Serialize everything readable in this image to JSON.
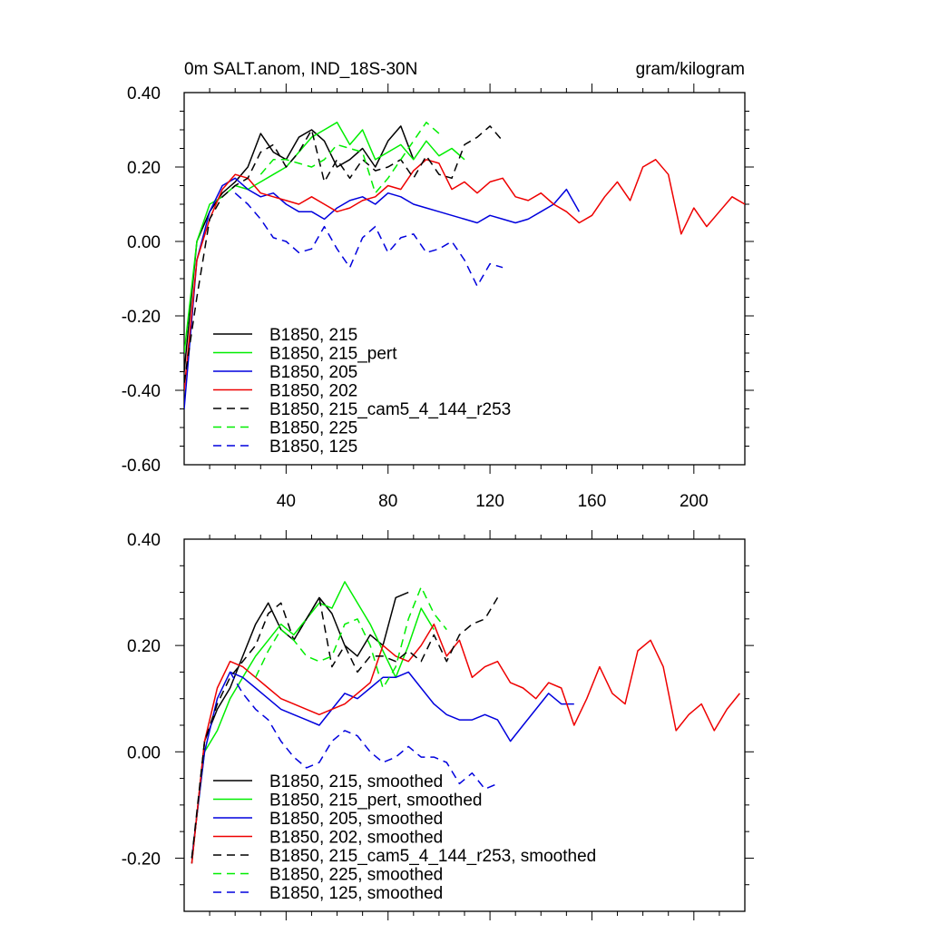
{
  "chart_data": [
    {
      "type": "line",
      "title": "0m SALT.anom, IND_18S-30N",
      "units": "gram/kilogram",
      "xlabel": "",
      "ylabel": "",
      "xlim": [
        0,
        220
      ],
      "ylim": [
        -0.6,
        0.4
      ],
      "xticks": [
        40,
        80,
        120,
        160,
        200
      ],
      "xtick_labels": [
        "40",
        "80",
        "120",
        "160",
        "200"
      ],
      "yticks": [
        -0.6,
        -0.4,
        -0.2,
        0.0,
        0.2,
        0.4
      ],
      "ytick_labels": [
        "-0.60",
        "-0.40",
        "-0.20",
        "0.00",
        "0.20",
        "0.40"
      ],
      "legend_position": "bottom-left",
      "series": [
        {
          "name": "B1850, 215",
          "color": "#000000",
          "dash": "solid",
          "x": [
            0,
            5,
            10,
            15,
            20,
            25,
            30,
            35,
            40,
            45,
            50,
            55,
            60,
            65,
            70,
            75,
            80,
            85,
            90
          ],
          "y": [
            -0.35,
            0.0,
            0.08,
            0.13,
            0.16,
            0.2,
            0.29,
            0.24,
            0.22,
            0.28,
            0.3,
            0.27,
            0.2,
            0.22,
            0.25,
            0.2,
            0.27,
            0.31,
            0.22
          ]
        },
        {
          "name": "B1850, 215_pert",
          "color": "#00ee00",
          "dash": "solid",
          "x": [
            0,
            5,
            10,
            15,
            20,
            25,
            30,
            35,
            40,
            45,
            50,
            55,
            60,
            65,
            70,
            75,
            80,
            85,
            90,
            95,
            100,
            105,
            110
          ],
          "y": [
            -0.3,
            0.0,
            0.1,
            0.12,
            0.15,
            0.14,
            0.16,
            0.18,
            0.2,
            0.24,
            0.28,
            0.3,
            0.32,
            0.26,
            0.3,
            0.22,
            0.24,
            0.26,
            0.22,
            0.27,
            0.23,
            0.25,
            0.22
          ]
        },
        {
          "name": "B1850, 205",
          "color": "#0000dd",
          "dash": "solid",
          "x": [
            0,
            5,
            10,
            15,
            20,
            25,
            30,
            35,
            40,
            45,
            50,
            55,
            60,
            65,
            70,
            75,
            80,
            85,
            90,
            95,
            100,
            105,
            110,
            115,
            120,
            125,
            130,
            135,
            140,
            145,
            150,
            155
          ],
          "y": [
            -0.45,
            -0.05,
            0.08,
            0.15,
            0.17,
            0.14,
            0.12,
            0.13,
            0.1,
            0.08,
            0.08,
            0.06,
            0.09,
            0.11,
            0.12,
            0.1,
            0.13,
            0.12,
            0.1,
            0.09,
            0.08,
            0.07,
            0.06,
            0.05,
            0.07,
            0.06,
            0.05,
            0.06,
            0.08,
            0.1,
            0.14,
            0.08
          ]
        },
        {
          "name": "B1850, 202",
          "color": "#ee0000",
          "dash": "solid",
          "x": [
            0,
            5,
            10,
            15,
            20,
            25,
            30,
            35,
            40,
            45,
            50,
            55,
            60,
            65,
            70,
            75,
            80,
            85,
            90,
            95,
            100,
            105,
            110,
            115,
            120,
            125,
            130,
            135,
            140,
            145,
            150,
            155,
            160,
            165,
            170,
            175,
            180,
            185,
            190,
            195,
            200,
            205,
            210,
            215,
            220
          ],
          "y": [
            -0.4,
            -0.05,
            0.06,
            0.14,
            0.18,
            0.17,
            0.13,
            0.12,
            0.11,
            0.1,
            0.12,
            0.1,
            0.08,
            0.09,
            0.11,
            0.12,
            0.15,
            0.14,
            0.19,
            0.22,
            0.21,
            0.14,
            0.16,
            0.13,
            0.16,
            0.17,
            0.12,
            0.11,
            0.13,
            0.1,
            0.08,
            0.05,
            0.07,
            0.12,
            0.16,
            0.11,
            0.2,
            0.22,
            0.18,
            0.02,
            0.09,
            0.04,
            0.08,
            0.12,
            0.1
          ]
        },
        {
          "name": "B1850, 215_cam5_4_144_r253",
          "color": "#000000",
          "dash": "dashed",
          "x": [
            0,
            5,
            10,
            15,
            20,
            25,
            30,
            35,
            40,
            45,
            50,
            55,
            60,
            65,
            70,
            75,
            80,
            85,
            90,
            95,
            100,
            105,
            110,
            115,
            120,
            125
          ],
          "y": [
            -0.38,
            -0.15,
            0.06,
            0.12,
            0.15,
            0.17,
            0.24,
            0.26,
            0.2,
            0.24,
            0.3,
            0.16,
            0.22,
            0.17,
            0.22,
            0.19,
            0.2,
            0.22,
            0.17,
            0.23,
            0.18,
            0.17,
            0.26,
            0.28,
            0.31,
            0.27
          ]
        },
        {
          "name": "B1850, 225",
          "color": "#00ee00",
          "dash": "dashed",
          "x": [
            30,
            35,
            40,
            45,
            50,
            55,
            60,
            65,
            70,
            75,
            80,
            85,
            90,
            95,
            100
          ],
          "y": [
            0.18,
            0.22,
            0.22,
            0.21,
            0.2,
            0.22,
            0.26,
            0.25,
            0.24,
            0.13,
            0.17,
            0.22,
            0.27,
            0.32,
            0.29
          ]
        },
        {
          "name": "B1850, 125",
          "color": "#0000dd",
          "dash": "dashed",
          "x": [
            20,
            25,
            30,
            35,
            40,
            45,
            50,
            55,
            60,
            65,
            70,
            75,
            80,
            85,
            90,
            95,
            100,
            105,
            110,
            115,
            120,
            125
          ],
          "y": [
            0.13,
            0.1,
            0.06,
            0.01,
            0.0,
            -0.03,
            -0.02,
            0.04,
            -0.02,
            -0.07,
            0.01,
            0.04,
            -0.03,
            0.01,
            0.02,
            -0.03,
            -0.02,
            0.0,
            -0.05,
            -0.12,
            -0.06,
            -0.07
          ]
        }
      ]
    },
    {
      "type": "line",
      "title": "",
      "xlabel": "",
      "ylabel": "",
      "xlim": [
        0,
        220
      ],
      "ylim": [
        -0.3,
        0.4
      ],
      "yticks": [
        -0.2,
        0.0,
        0.2,
        0.4
      ],
      "ytick_labels": [
        "-0.20",
        "0.00",
        "0.20",
        "0.40"
      ],
      "legend_position": "bottom-left",
      "series": [
        {
          "name": "B1850, 215, smoothed",
          "color": "#000000",
          "dash": "solid",
          "x": [
            3,
            8,
            13,
            18,
            23,
            28,
            33,
            38,
            43,
            48,
            53,
            58,
            63,
            68,
            73,
            78,
            83,
            88
          ],
          "y": [
            -0.21,
            0.02,
            0.08,
            0.12,
            0.18,
            0.24,
            0.28,
            0.23,
            0.21,
            0.25,
            0.29,
            0.26,
            0.2,
            0.18,
            0.22,
            0.2,
            0.29,
            0.3
          ]
        },
        {
          "name": "B1850, 215_pert, smoothed",
          "color": "#00ee00",
          "dash": "solid",
          "x": [
            3,
            8,
            13,
            18,
            23,
            28,
            33,
            38,
            43,
            48,
            53,
            58,
            63,
            68,
            73,
            78,
            83,
            88,
            93,
            98
          ],
          "y": [
            -0.2,
            0.0,
            0.04,
            0.1,
            0.14,
            0.18,
            0.21,
            0.24,
            0.22,
            0.25,
            0.28,
            0.27,
            0.32,
            0.28,
            0.24,
            0.19,
            0.14,
            0.2,
            0.27,
            0.23
          ]
        },
        {
          "name": "B1850, 205, smoothed",
          "color": "#0000dd",
          "dash": "solid",
          "x": [
            3,
            8,
            13,
            18,
            23,
            28,
            33,
            38,
            43,
            48,
            53,
            58,
            63,
            68,
            73,
            78,
            83,
            88,
            93,
            98,
            103,
            108,
            113,
            118,
            123,
            128,
            133,
            138,
            143,
            148,
            153
          ],
          "y": [
            -0.2,
            0.0,
            0.1,
            0.15,
            0.14,
            0.12,
            0.1,
            0.08,
            0.07,
            0.06,
            0.05,
            0.08,
            0.11,
            0.1,
            0.12,
            0.14,
            0.14,
            0.15,
            0.12,
            0.09,
            0.07,
            0.06,
            0.06,
            0.07,
            0.06,
            0.02,
            0.05,
            0.08,
            0.11,
            0.09,
            0.09
          ]
        },
        {
          "name": "B1850, 202, smoothed",
          "color": "#ee0000",
          "dash": "solid",
          "x": [
            3,
            8,
            13,
            18,
            23,
            28,
            33,
            38,
            43,
            48,
            53,
            58,
            63,
            68,
            73,
            78,
            83,
            88,
            93,
            98,
            103,
            108,
            113,
            118,
            123,
            128,
            133,
            138,
            143,
            148,
            153,
            158,
            163,
            168,
            173,
            178,
            183,
            188,
            193,
            198,
            203,
            208,
            213,
            218
          ],
          "y": [
            -0.21,
            0.02,
            0.12,
            0.17,
            0.16,
            0.14,
            0.12,
            0.1,
            0.09,
            0.08,
            0.07,
            0.08,
            0.09,
            0.11,
            0.13,
            0.2,
            0.18,
            0.17,
            0.2,
            0.24,
            0.18,
            0.21,
            0.14,
            0.16,
            0.17,
            0.13,
            0.12,
            0.1,
            0.13,
            0.12,
            0.05,
            0.1,
            0.16,
            0.11,
            0.09,
            0.19,
            0.21,
            0.16,
            0.04,
            0.07,
            0.09,
            0.04,
            0.08,
            0.11
          ]
        },
        {
          "name": "B1850, 215_cam5_4_144_r253, smoothed",
          "color": "#000000",
          "dash": "dashed",
          "x": [
            3,
            8,
            13,
            18,
            23,
            28,
            33,
            38,
            43,
            48,
            53,
            58,
            63,
            68,
            73,
            78,
            83,
            88,
            93,
            98,
            103,
            108,
            113,
            118,
            123
          ],
          "y": [
            -0.2,
            0.02,
            0.09,
            0.14,
            0.17,
            0.2,
            0.26,
            0.28,
            0.21,
            0.25,
            0.29,
            0.16,
            0.2,
            0.15,
            0.18,
            0.18,
            0.17,
            0.19,
            0.17,
            0.22,
            0.17,
            0.22,
            0.24,
            0.25,
            0.29
          ]
        },
        {
          "name": "B1850, 225, smoothed",
          "color": "#00ee00",
          "dash": "dashed",
          "x": [
            28,
            33,
            38,
            43,
            48,
            53,
            58,
            63,
            68,
            73,
            78,
            83,
            88,
            93,
            98,
            103
          ],
          "y": [
            0.14,
            0.19,
            0.23,
            0.21,
            0.18,
            0.17,
            0.18,
            0.24,
            0.25,
            0.2,
            0.12,
            0.16,
            0.25,
            0.31,
            0.26,
            0.23
          ]
        },
        {
          "name": "B1850, 125, smoothed",
          "color": "#0000dd",
          "dash": "dashed",
          "x": [
            18,
            23,
            28,
            33,
            38,
            43,
            48,
            53,
            58,
            63,
            68,
            73,
            78,
            83,
            88,
            93,
            98,
            103,
            108,
            113,
            118,
            123
          ],
          "y": [
            0.15,
            0.11,
            0.08,
            0.06,
            0.02,
            -0.01,
            -0.03,
            -0.02,
            0.02,
            0.04,
            0.03,
            0.0,
            -0.02,
            -0.01,
            0.01,
            -0.01,
            -0.01,
            -0.02,
            -0.06,
            -0.04,
            -0.07,
            -0.06
          ]
        }
      ]
    }
  ]
}
